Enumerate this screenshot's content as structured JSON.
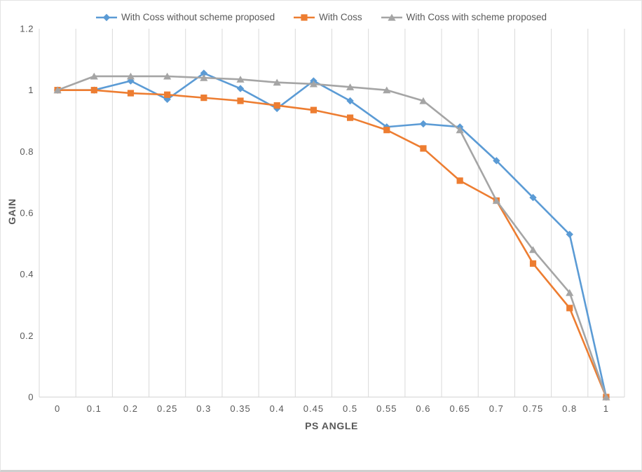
{
  "page": {
    "background": "#ffffff",
    "border_color": "#e3e3e3"
  },
  "chart_data": {
    "type": "line",
    "title": "",
    "categories": [
      "0",
      "0.1",
      "0.2",
      "0.25",
      "0.3",
      "0.35",
      "0.4",
      "0.45",
      "0.5",
      "0.55",
      "0.6",
      "0.65",
      "0.7",
      "0.75",
      "0.8",
      "1"
    ],
    "series": [
      {
        "name": "With Coss without scheme proposed",
        "color": "#5B9BD5",
        "marker": "diamond",
        "values": [
          1.0,
          1.0,
          1.03,
          0.97,
          1.055,
          1.005,
          0.94,
          1.03,
          0.965,
          0.88,
          0.89,
          0.88,
          0.77,
          0.65,
          0.53,
          0
        ]
      },
      {
        "name": "With Coss",
        "color": "#ED7D31",
        "marker": "square",
        "values": [
          1.0,
          1.0,
          0.99,
          0.985,
          0.975,
          0.965,
          0.95,
          0.935,
          0.91,
          0.87,
          0.81,
          0.705,
          0.64,
          0.435,
          0.29,
          0
        ]
      },
      {
        "name": "With Coss with scheme proposed",
        "color": "#A5A5A5",
        "marker": "triangle",
        "values": [
          1.0,
          1.045,
          1.045,
          1.045,
          1.04,
          1.035,
          1.025,
          1.02,
          1.01,
          1.0,
          0.965,
          0.87,
          0.64,
          0.48,
          0.34,
          0
        ]
      }
    ],
    "xlabel": "PS ANGLE",
    "ylabel": "GAIN",
    "ylim": [
      0,
      1.2
    ],
    "y_tick_labels": [
      "0",
      "0.2",
      "0.4",
      "0.6",
      "0.8",
      "1",
      "1.2"
    ],
    "grid": "vertical-only",
    "legend_position": "top",
    "colors": {
      "gridline": "#d9d9d9",
      "axis_line": "#d9d9d9",
      "tick_label": "#595959",
      "axis_title": "#595959",
      "legend_text": "#595959"
    }
  }
}
